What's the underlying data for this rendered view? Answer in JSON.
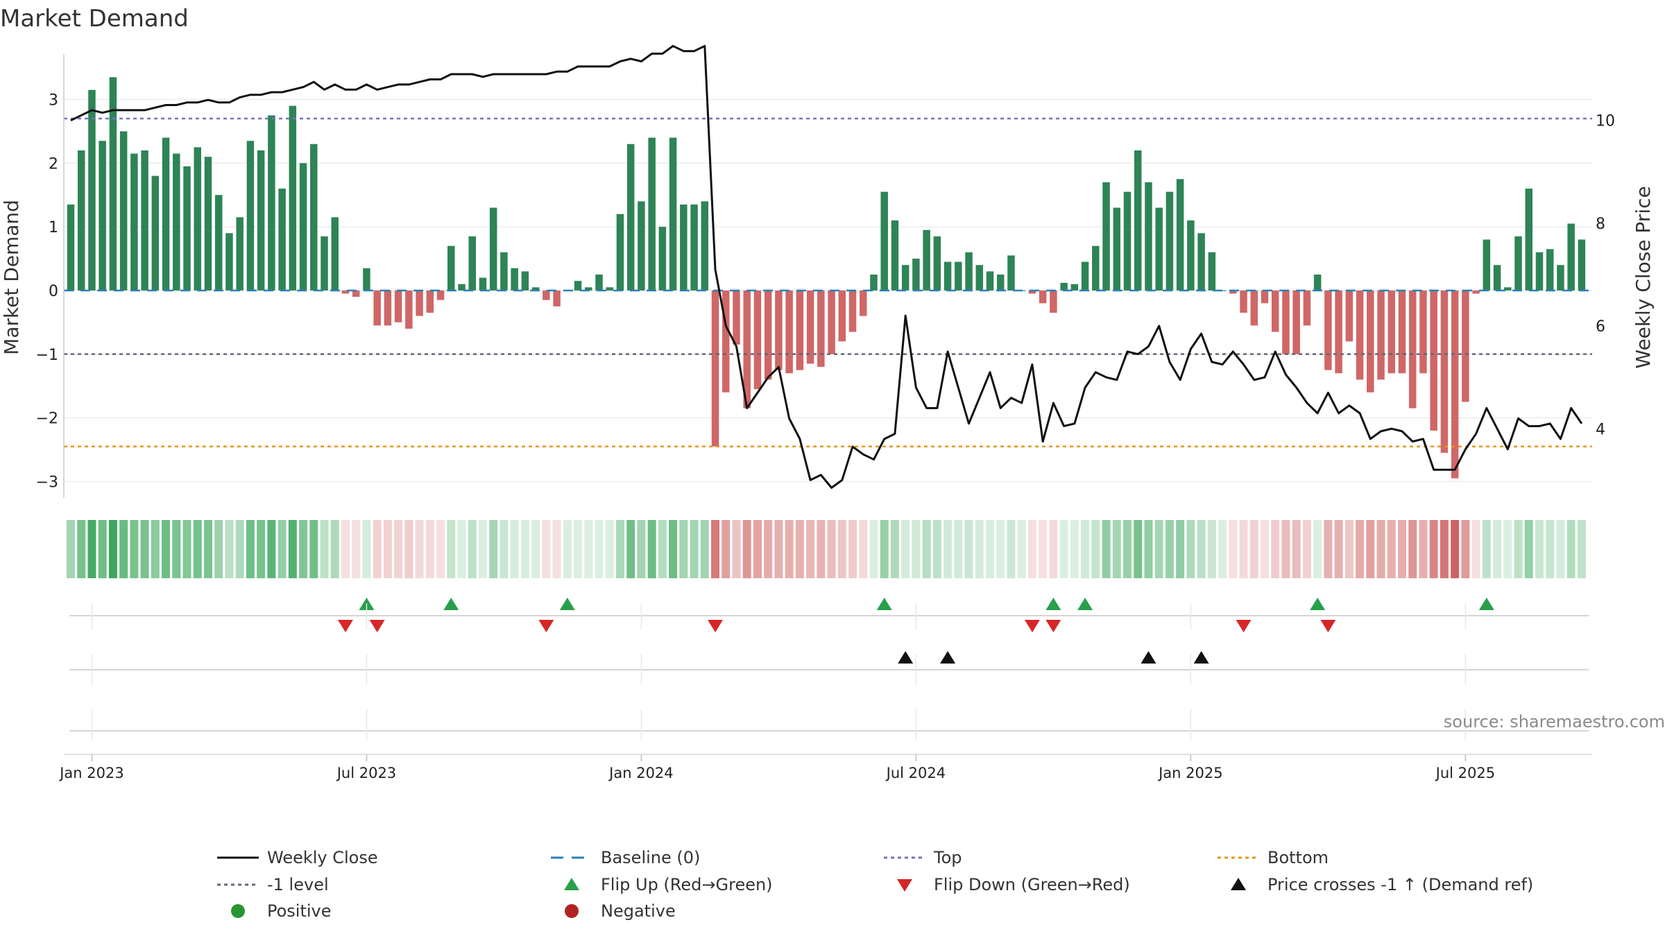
{
  "chart_data": {
    "type": "bar",
    "title": "Market Demand",
    "ylabel_left": "Market Demand",
    "ylabel_right": "Weekly Close Price",
    "ylim_left": [
      -3.3,
      3.8
    ],
    "ylim_right": [
      2.6,
      11.4
    ],
    "left_ticks": [
      {
        "v": 3,
        "label": "3"
      },
      {
        "v": 2,
        "label": "2"
      },
      {
        "v": 1,
        "label": "1"
      },
      {
        "v": 0,
        "label": "0"
      },
      {
        "v": -1,
        "label": "−1"
      },
      {
        "v": -2,
        "label": "−2"
      },
      {
        "v": -3,
        "label": "−3"
      }
    ],
    "right_ticks": [
      {
        "v": 10,
        "label": "10"
      },
      {
        "v": 8,
        "label": "8"
      },
      {
        "v": 6,
        "label": "6"
      },
      {
        "v": 4,
        "label": "4"
      }
    ],
    "x_ticks": [
      {
        "i": 2,
        "label": "Jan 2023"
      },
      {
        "i": 28,
        "label": "Jul 2023"
      },
      {
        "i": 54,
        "label": "Jan 2024"
      },
      {
        "i": 80,
        "label": "Jul 2024"
      },
      {
        "i": 106,
        "label": "Jan 2025"
      },
      {
        "i": 132,
        "label": "Jul 2025"
      }
    ],
    "reference_lines": {
      "top": 2.7,
      "bottom": -2.45,
      "minus_one": -1,
      "baseline": 0
    },
    "demand": [
      1.35,
      2.2,
      3.15,
      2.35,
      3.35,
      2.5,
      2.15,
      2.2,
      1.8,
      2.4,
      2.15,
      1.95,
      2.25,
      2.1,
      1.5,
      0.9,
      1.15,
      2.35,
      2.2,
      2.75,
      1.6,
      2.9,
      2.0,
      2.3,
      0.85,
      1.15,
      -0.05,
      -0.1,
      0.35,
      -0.55,
      -0.55,
      -0.5,
      -0.6,
      -0.4,
      -0.35,
      -0.15,
      0.7,
      0.1,
      0.85,
      0.2,
      1.3,
      0.6,
      0.35,
      0.3,
      0.05,
      -0.15,
      -0.25,
      0.0,
      0.15,
      0.05,
      0.25,
      0.05,
      1.2,
      2.3,
      1.4,
      2.4,
      1.0,
      2.4,
      1.35,
      1.35,
      1.4,
      -2.45,
      -1.6,
      -0.85,
      -1.85,
      -1.55,
      -1.4,
      -1.25,
      -1.3,
      -1.25,
      -1.15,
      -1.2,
      -1.0,
      -0.8,
      -0.65,
      -0.4,
      0.25,
      1.55,
      1.1,
      0.4,
      0.5,
      0.95,
      0.85,
      0.45,
      0.45,
      0.6,
      0.4,
      0.3,
      0.25,
      0.55,
      0.0,
      -0.05,
      -0.2,
      -0.35,
      0.12,
      0.1,
      0.45,
      0.7,
      1.7,
      1.3,
      1.55,
      2.2,
      1.7,
      1.3,
      1.55,
      1.75,
      1.1,
      0.9,
      0.6,
      0.0,
      -0.05,
      -0.35,
      -0.55,
      -0.2,
      -0.65,
      -1.0,
      -1.0,
      -0.55,
      0.25,
      -1.25,
      -1.3,
      -0.8,
      -1.4,
      -1.6,
      -1.4,
      -1.3,
      -1.3,
      -1.85,
      -1.3,
      -2.2,
      -2.55,
      -2.95,
      -1.75,
      -0.05,
      0.8,
      0.4,
      0.05,
      0.85,
      1.6,
      0.6,
      0.65,
      0.4,
      1.05,
      0.8
    ],
    "close": [
      10.0,
      10.1,
      10.2,
      10.15,
      10.2,
      10.2,
      10.2,
      10.2,
      10.25,
      10.3,
      10.3,
      10.35,
      10.35,
      10.4,
      10.35,
      10.35,
      10.45,
      10.5,
      10.5,
      10.55,
      10.55,
      10.6,
      10.65,
      10.75,
      10.6,
      10.7,
      10.6,
      10.6,
      10.7,
      10.6,
      10.65,
      10.7,
      10.7,
      10.75,
      10.8,
      10.8,
      10.9,
      10.9,
      10.9,
      10.85,
      10.9,
      10.9,
      10.9,
      10.9,
      10.9,
      10.9,
      10.95,
      10.95,
      11.05,
      11.05,
      11.05,
      11.05,
      11.15,
      11.2,
      11.15,
      11.3,
      11.3,
      11.45,
      11.35,
      11.35,
      11.45,
      7.1,
      6.0,
      5.6,
      4.4,
      4.7,
      5.0,
      5.2,
      4.2,
      3.8,
      3.0,
      3.1,
      2.85,
      3.0,
      3.65,
      3.5,
      3.4,
      3.8,
      3.9,
      6.2,
      4.8,
      4.4,
      4.4,
      5.5,
      4.8,
      4.1,
      4.6,
      5.1,
      4.4,
      4.6,
      4.5,
      5.25,
      3.75,
      4.5,
      4.05,
      4.1,
      4.8,
      5.1,
      5.0,
      4.95,
      5.5,
      5.45,
      5.6,
      6.0,
      5.3,
      4.95,
      5.55,
      5.85,
      5.3,
      5.25,
      5.5,
      5.25,
      4.95,
      5.0,
      5.5,
      5.05,
      4.8,
      4.5,
      4.3,
      4.7,
      4.3,
      4.45,
      4.3,
      3.8,
      3.95,
      4.0,
      3.95,
      3.75,
      3.8,
      3.2,
      3.2,
      3.2,
      3.6,
      3.9,
      4.4,
      4.0,
      3.6,
      4.2,
      4.05,
      4.05,
      4.1,
      3.8,
      4.4,
      4.1
    ],
    "flip_up_indices": [
      28,
      36,
      47,
      77,
      93,
      96,
      118,
      134
    ],
    "flip_down_indices": [
      26,
      29,
      45,
      61,
      91,
      93,
      111,
      119
    ],
    "price_cross_indices": [
      79,
      83,
      102,
      107
    ],
    "legend": [
      {
        "key": "weekly_close",
        "label": "Weekly Close",
        "color": "#111111"
      },
      {
        "key": "baseline",
        "label": "Baseline (0)",
        "color": "#2b7fb8"
      },
      {
        "key": "top",
        "label": "Top",
        "color": "#7b6cc8"
      },
      {
        "key": "bottom",
        "label": "Bottom",
        "color": "#e6951c"
      },
      {
        "key": "minus_one",
        "label": "-1 level",
        "color": "#666677"
      },
      {
        "key": "flip_up",
        "label": "Flip Up (Red→Green)",
        "color": "#27a04a"
      },
      {
        "key": "flip_down",
        "label": "Flip Down (Green→Red)",
        "color": "#d62728"
      },
      {
        "key": "price_cross",
        "label": "Price crosses -1 ↑ (Demand ref)",
        "color": "#111111"
      },
      {
        "key": "positive",
        "label": "Positive",
        "color": "#2a9530"
      },
      {
        "key": "negative",
        "label": "Negative",
        "color": "#b22424"
      }
    ],
    "source": "source: sharemaestro.com"
  },
  "colors": {
    "pos_bar": "#2e8456",
    "neg_bar": "#cf6767",
    "grid": "#ececec",
    "baseline": "#2b7fb8",
    "top": "#7b6cc8",
    "bottom": "#e6951c",
    "minus_one": "#666677"
  }
}
